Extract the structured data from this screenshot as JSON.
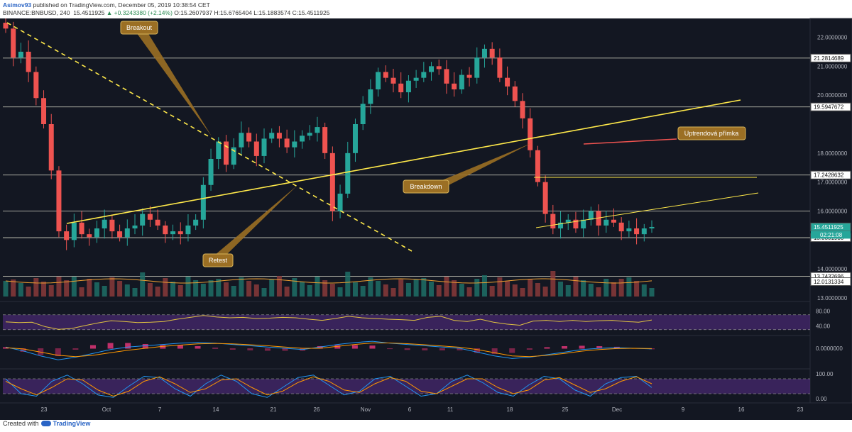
{
  "header": {
    "author": "Asimov93",
    "published": "published on TradingView.com, December 05, 2019 10:38:54 CET",
    "symbol": "BINANCE:BNBUSD, 240",
    "last": "15.4511925",
    "change": "+0.3243380 (+2.14%)",
    "ohlc": "O:15.2607937 H:15.6765404 L:15.1883574 C:15.4511925"
  },
  "footer": {
    "created": "Created with",
    "brand": "TradingView"
  },
  "colors": {
    "background": "#131722",
    "up": "#26a69a",
    "down": "#ef5350",
    "trendline": "#ffe94a",
    "annotation": "#9b6f24",
    "rsi_band": "#5a2e8a"
  },
  "chart_data": [
    {
      "type": "candlestick",
      "title": "BINANCE:BNBUSD, 240",
      "ylim": [
        13.0,
        22.6
      ],
      "yticks": [
        "22.0000000",
        "21.0000000",
        "20.0000000",
        "18.0000000",
        "17.0000000",
        "16.0000000",
        "14.0000000",
        "13.0000000"
      ],
      "price_labels": [
        {
          "value": 21.2814689,
          "label": "21.2814689"
        },
        {
          "value": 19.5947672,
          "label": "19.5947672"
        },
        {
          "value": 17.2428632,
          "label": "17.2428632"
        },
        {
          "value": 15.4511925,
          "label": "15.4511925"
        },
        {
          "value": 15.080193,
          "label": "15.0801930"
        },
        {
          "value": 13.7432696,
          "label": "13.7432696"
        },
        {
          "value": 12.0131334,
          "label": "12.0131334"
        }
      ],
      "countdown": "02:21:08",
      "horizontal_levels": [
        21.2814689,
        19.5947672,
        17.2428632,
        16.0,
        15.080193,
        13.7432696
      ],
      "x_ticks": [
        "23",
        "Oct",
        "7",
        "14",
        "21",
        "26",
        "Nov",
        "6",
        "11",
        "18",
        "25",
        "Dec",
        "9",
        "16",
        "23"
      ],
      "annotations": [
        "Breakout",
        "Retest",
        "Breakdown",
        "Uptrendová přímka"
      ],
      "series": [
        {
          "name": "BNBUSD",
          "close": [
            22.3,
            21.3,
            21.5,
            20.8,
            19.9,
            19.0,
            17.4,
            15.3,
            15.0,
            15.6,
            15.2,
            15.1,
            15.4,
            15.7,
            15.3,
            15.1,
            15.4,
            15.5,
            15.9,
            15.7,
            15.5,
            15.2,
            15.3,
            15.2,
            15.5,
            15.7,
            16.9,
            17.8,
            18.4,
            17.6,
            18.2,
            18.7,
            18.4,
            17.9,
            18.5,
            18.7,
            18.5,
            18.2,
            18.4,
            18.6,
            18.7,
            18.9,
            18.0,
            16.0,
            16.6,
            18.0,
            19.0,
            19.7,
            20.2,
            20.8,
            20.6,
            20.4,
            20.1,
            20.5,
            20.6,
            20.8,
            21.0,
            20.9,
            20.4,
            20.2,
            20.7,
            20.6,
            21.3,
            21.6,
            21.3,
            20.6,
            20.3,
            19.8,
            19.2,
            18.1,
            17.0,
            15.9,
            15.4,
            15.6,
            15.7,
            15.4,
            15.7,
            16.0,
            15.5,
            15.7,
            15.6,
            15.3,
            15.4,
            15.2,
            15.4,
            15.45
          ]
        }
      ],
      "volume_ma_label": "12.0131334"
    },
    {
      "type": "line",
      "name": "RSI",
      "ylim": [
        20,
        100
      ],
      "yticks": [
        "80.00",
        "40.00"
      ],
      "values": [
        51,
        49,
        50,
        38,
        31,
        33,
        41,
        48,
        54,
        52,
        49,
        50,
        52,
        58,
        63,
        68,
        64,
        62,
        63,
        60,
        61,
        63,
        62,
        58,
        55,
        60,
        66,
        62,
        60,
        58,
        57,
        55,
        63,
        66,
        55,
        52,
        58,
        50,
        45,
        42,
        53,
        55,
        52,
        55,
        52,
        54,
        55,
        52,
        50,
        56
      ]
    },
    {
      "type": "line",
      "name": "MACD",
      "yticks": [
        "0.0000000"
      ],
      "macd": [
        0.1,
        -0.2,
        -0.6,
        -0.9,
        -0.7,
        -0.4,
        -0.1,
        0.1,
        0.2,
        0.3,
        0.4,
        0.45,
        0.4,
        0.3,
        0.2,
        0.1,
        0.0,
        -0.1,
        0.1,
        0.3,
        0.45,
        0.55,
        0.4,
        0.3,
        0.2,
        0.1,
        0.0,
        -0.3,
        -0.6,
        -0.8,
        -0.7,
        -0.5,
        -0.3,
        -0.1,
        0.0,
        0.05,
        0.0,
        -0.05
      ],
      "signal": [
        0.05,
        -0.05,
        -0.3,
        -0.55,
        -0.65,
        -0.55,
        -0.35,
        -0.15,
        0.0,
        0.15,
        0.25,
        0.35,
        0.38,
        0.35,
        0.28,
        0.2,
        0.1,
        0.0,
        0.0,
        0.15,
        0.3,
        0.42,
        0.42,
        0.36,
        0.28,
        0.18,
        0.08,
        -0.1,
        -0.35,
        -0.6,
        -0.65,
        -0.55,
        -0.4,
        -0.22,
        -0.1,
        -0.02,
        0.0,
        -0.02
      ]
    },
    {
      "type": "line",
      "name": "Stoch RSI",
      "ylim": [
        0,
        100
      ],
      "yticks": [
        "100.00",
        "0.00"
      ],
      "k": [
        80,
        20,
        10,
        70,
        95,
        60,
        15,
        5,
        50,
        90,
        85,
        40,
        10,
        60,
        95,
        70,
        20,
        5,
        45,
        85,
        95,
        55,
        15,
        30,
        80,
        90,
        50,
        10,
        20,
        70,
        95,
        65,
        25,
        10,
        55,
        90,
        80,
        35,
        10,
        60,
        85,
        90,
        45
      ],
      "d": [
        70,
        40,
        15,
        45,
        80,
        75,
        35,
        10,
        30,
        70,
        88,
        60,
        25,
        40,
        75,
        80,
        45,
        15,
        30,
        65,
        88,
        70,
        35,
        25,
        60,
        85,
        70,
        30,
        20,
        50,
        80,
        80,
        45,
        20,
        35,
        75,
        85,
        55,
        25,
        40,
        70,
        88,
        60
      ]
    }
  ]
}
